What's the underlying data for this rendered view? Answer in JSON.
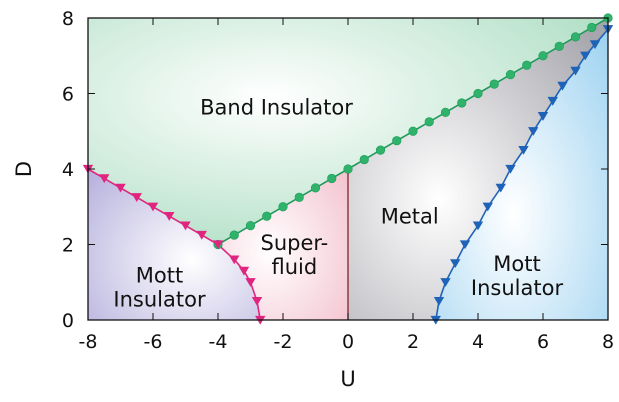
{
  "chart_data": {
    "type": "scatter",
    "title": "",
    "xlabel": "U",
    "ylabel": "D",
    "xlim": [
      -8,
      8
    ],
    "ylim": [
      0,
      8
    ],
    "xticks": [
      "-8",
      "-6",
      "-4",
      "-2",
      "0",
      "2",
      "4",
      "6",
      "8"
    ],
    "yticks": [
      "0",
      "2",
      "4",
      "6",
      "8"
    ],
    "colors": {
      "band_boundary": "#1f9a5a",
      "band_marker": "#2fb36a",
      "mott_left_boundary": "#e0257f",
      "mott_right_boundary": "#1f63b8",
      "band_region": "#a9dcc0",
      "mott_left_region": "#b8b3de",
      "superfluid_region": "#f3c2cf",
      "metal_region": "#a6a6ad",
      "mott_right_region": "#9fd3f1"
    },
    "series": [
      {
        "marker": "circle",
        "x": [
          -4.0,
          -3.5,
          -3.0,
          -2.5,
          -2.0,
          -1.5,
          -1.0,
          -0.5,
          0.0,
          0.5,
          1.0,
          1.5,
          2.0,
          2.5,
          3.0,
          3.5,
          4.0,
          4.5,
          5.0,
          5.5,
          6.0,
          6.5,
          7.0,
          7.5,
          8.0
        ],
        "y": [
          2.0,
          2.25,
          2.5,
          2.75,
          3.0,
          3.25,
          3.5,
          3.75,
          4.0,
          4.25,
          4.5,
          4.75,
          5.0,
          5.25,
          5.5,
          5.75,
          6.0,
          6.25,
          6.5,
          6.75,
          7.0,
          7.25,
          7.5,
          7.75,
          8.0
        ]
      },
      {
        "marker": "triangle-down",
        "x": [
          -8.0,
          -7.5,
          -7.0,
          -6.5,
          -6.0,
          -5.5,
          -5.0,
          -4.5,
          -4.0,
          -3.5,
          -3.2,
          -3.0,
          -2.8,
          -2.7
        ],
        "y": [
          4.0,
          3.75,
          3.5,
          3.25,
          3.0,
          2.75,
          2.5,
          2.25,
          2.0,
          1.6,
          1.3,
          1.0,
          0.5,
          0.0
        ]
      },
      {
        "marker": "triangle-down",
        "x": [
          2.7,
          2.8,
          3.0,
          3.3,
          3.6,
          4.0,
          4.3,
          4.7,
          5.0,
          5.4,
          5.7,
          6.0,
          6.3,
          6.6,
          7.0,
          7.3,
          7.6,
          8.0
        ],
        "y": [
          0.0,
          0.5,
          1.0,
          1.5,
          2.0,
          2.5,
          3.0,
          3.5,
          4.0,
          4.5,
          5.0,
          5.4,
          5.8,
          6.2,
          6.6,
          7.0,
          7.3,
          7.7
        ]
      }
    ],
    "vertical_boundary": {
      "x": 0,
      "y": [
        0,
        4
      ]
    },
    "regions": [
      {
        "lines": [
          "Band Insulator"
        ],
        "x": -2.2,
        "y": 5.45
      },
      {
        "lines": [
          "Mott",
          "Insulator"
        ],
        "x": -5.8,
        "y": 1.0
      },
      {
        "lines": [
          "Super-",
          "fluid"
        ],
        "x": -1.65,
        "y": 1.85
      },
      {
        "lines": [
          "Metal"
        ],
        "x": 1.9,
        "y": 2.55
      },
      {
        "lines": [
          "Mott",
          "Insulator"
        ],
        "x": 5.2,
        "y": 1.3
      }
    ]
  }
}
